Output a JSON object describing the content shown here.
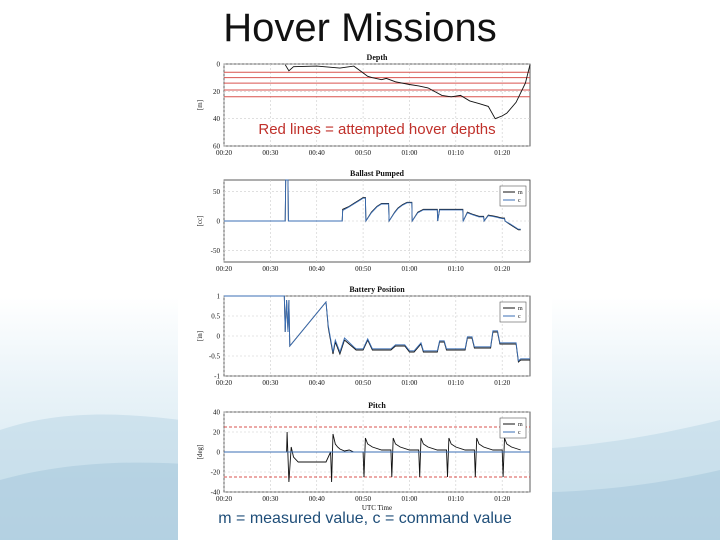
{
  "slide": {
    "title": "Hover Missions",
    "footer_note": "m = measured value, c = command value",
    "colors": {
      "background": "#ffffff",
      "title": "#111111",
      "note": "#1f4e79",
      "hover_lines": "#d9534f",
      "measured": "#111111",
      "command": "#3b6fb6"
    }
  },
  "chart_data": [
    {
      "type": "line",
      "title": "Depth",
      "ylabel": "[m]",
      "xlabel": "",
      "ylim": [
        60,
        0
      ],
      "yticks": [
        0,
        20,
        40,
        60
      ],
      "xticks": [
        "00:20",
        "00:30",
        "00:40",
        "00:50",
        "01:00",
        "01:10",
        "01:20"
      ],
      "xlim_minutes": [
        20,
        86
      ],
      "annotation": "Red lines = attempted hover depths",
      "hover_depths": [
        6,
        10,
        14,
        19,
        24
      ],
      "series": [
        {
          "x": [
            33.2,
            34.0,
            35.0,
            40.0,
            45.0,
            48.0,
            50.0,
            51.0,
            52.0,
            54.0,
            55.0,
            57.0,
            60.0,
            62.0,
            64.0,
            67.0,
            69.0,
            71.0,
            73.0,
            75.0,
            77.0,
            78.5,
            80.0,
            81.0,
            83.0,
            85.0,
            86.0
          ],
          "y": [
            0.5,
            5.0,
            2.0,
            1.5,
            3.0,
            1.5,
            6.5,
            9.0,
            10.0,
            11.5,
            10.5,
            13.0,
            15.0,
            16.0,
            17.5,
            23.0,
            24.0,
            23.0,
            27.0,
            29.0,
            31.0,
            40.0,
            38.0,
            36.0,
            28.0,
            14.0,
            0.5
          ]
        }
      ]
    },
    {
      "type": "line",
      "title": "Ballast Pumped",
      "ylabel": "[cc]",
      "xlabel": "",
      "ylim": [
        -70,
        70
      ],
      "yticks": [
        50,
        0,
        -50
      ],
      "xticks": [
        "00:20",
        "00:30",
        "00:40",
        "00:50",
        "01:00",
        "01:10",
        "01:20"
      ],
      "xlim_minutes": [
        20,
        86
      ],
      "legend": [
        "m",
        "c"
      ],
      "legend_position": "top-right",
      "series": [
        {
          "name": "m",
          "x": [
            20,
            33.2,
            33.3,
            33.8,
            33.9,
            43.0,
            45.5,
            45.6,
            47.0,
            48.0,
            49.0,
            50.0,
            50.5,
            50.6,
            51.8,
            53.0,
            54.0,
            55.5,
            55.6,
            56.8,
            57.5,
            58.5,
            59.5,
            60.5,
            60.6,
            61.8,
            63.0,
            64.5,
            66.0,
            66.1,
            66.5,
            71.5,
            71.6,
            72.5,
            73.5,
            75.0,
            76.0,
            76.1,
            77.0,
            78.5,
            80.0,
            80.5,
            80.6,
            81.5,
            82.5,
            83.5,
            84.0
          ],
          "y": [
            0,
            0,
            70,
            70,
            0,
            0,
            0,
            20,
            25,
            30,
            35,
            40,
            40,
            0,
            15,
            25,
            30,
            30,
            0,
            15,
            22,
            28,
            32,
            32,
            0,
            15,
            20,
            20,
            20,
            0,
            20,
            20,
            0,
            15,
            12,
            8,
            8,
            0,
            10,
            8,
            5,
            5,
            0,
            -5,
            -10,
            -15,
            -15
          ]
        },
        {
          "name": "c",
          "x": [
            20,
            33.2,
            33.3,
            33.8,
            33.9,
            43.0,
            45.5,
            45.6,
            47.0,
            48.0,
            49.0,
            50.0,
            50.5,
            50.6,
            51.8,
            53.0,
            54.0,
            55.5,
            55.6,
            56.8,
            57.5,
            58.5,
            59.5,
            60.5,
            60.6,
            61.8,
            63.0,
            64.5,
            66.0,
            66.1,
            66.5,
            71.5,
            71.6,
            72.5,
            73.5,
            75.0,
            76.0,
            76.1,
            77.0,
            78.5,
            80.0,
            80.5,
            80.6,
            81.5,
            82.5,
            83.5,
            84.0
          ],
          "y": [
            0,
            0,
            70,
            70,
            0,
            0,
            0,
            18,
            24,
            29,
            34,
            39,
            39,
            0,
            14,
            24,
            29,
            29,
            0,
            14,
            21,
            27,
            31,
            31,
            0,
            14,
            19,
            19,
            19,
            0,
            19,
            19,
            0,
            14,
            11,
            7,
            7,
            0,
            9,
            7,
            4,
            4,
            0,
            -4,
            -9,
            -14,
            -14
          ]
        }
      ]
    },
    {
      "type": "line",
      "title": "Battery Position",
      "ylabel": "[in]",
      "xlabel": "",
      "ylim": [
        -1,
        1
      ],
      "yticks": [
        1,
        0.5,
        0,
        -0.5,
        -1
      ],
      "xticks": [
        "00:20",
        "00:30",
        "00:40",
        "00:50",
        "01:00",
        "01:10",
        "01:20"
      ],
      "xlim_minutes": [
        20,
        86
      ],
      "legend": [
        "m",
        "c"
      ],
      "legend_position": "top-right",
      "series": [
        {
          "name": "m",
          "x": [
            20,
            33.0,
            33.2,
            33.5,
            33.8,
            34.0,
            34.2,
            42.0,
            42.5,
            43.5,
            44.0,
            45.0,
            46.0,
            48.0,
            48.5,
            50.0,
            51.0,
            52.0,
            52.5,
            56.0,
            57.0,
            59.0,
            60.0,
            61.0,
            62.5,
            63.0,
            66.0,
            66.5,
            67.5,
            68.0,
            72.0,
            72.5,
            73.5,
            74.0,
            77.5,
            78.0,
            79.0,
            79.5,
            83.0,
            83.5,
            84.0,
            86.0
          ],
          "y": [
            1.0,
            1.0,
            0.1,
            0.9,
            0.1,
            0.9,
            -0.25,
            0.85,
            0.2,
            -0.45,
            -0.15,
            -0.45,
            -0.1,
            -0.3,
            -0.35,
            -0.35,
            -0.1,
            -0.35,
            -0.35,
            -0.35,
            -0.25,
            -0.25,
            -0.4,
            -0.4,
            -0.2,
            -0.4,
            -0.4,
            -0.15,
            -0.15,
            -0.35,
            -0.35,
            -0.05,
            -0.05,
            -0.3,
            -0.3,
            0.1,
            0.1,
            -0.2,
            -0.2,
            -0.65,
            -0.6,
            -0.6
          ]
        },
        {
          "name": "c",
          "x": [
            20,
            33.0,
            33.2,
            33.5,
            33.8,
            34.0,
            34.2,
            42.0,
            42.5,
            43.5,
            44.0,
            45.0,
            46.0,
            48.0,
            48.5,
            50.0,
            51.0,
            52.0,
            52.5,
            56.0,
            57.0,
            59.0,
            60.0,
            61.0,
            62.5,
            63.0,
            66.0,
            66.5,
            67.5,
            68.0,
            72.0,
            72.5,
            73.5,
            74.0,
            77.5,
            78.0,
            79.0,
            79.5,
            83.0,
            83.5,
            84.0,
            86.0
          ],
          "y": [
            1.0,
            1.0,
            0.1,
            0.9,
            0.1,
            0.9,
            -0.25,
            0.85,
            0.25,
            -0.4,
            -0.1,
            -0.4,
            -0.05,
            -0.27,
            -0.32,
            -0.32,
            -0.07,
            -0.32,
            -0.32,
            -0.32,
            -0.22,
            -0.22,
            -0.37,
            -0.37,
            -0.17,
            -0.37,
            -0.37,
            -0.12,
            -0.12,
            -0.32,
            -0.32,
            -0.02,
            -0.02,
            -0.27,
            -0.27,
            0.13,
            0.13,
            -0.17,
            -0.17,
            -0.62,
            -0.57,
            -0.57
          ]
        }
      ]
    },
    {
      "type": "line",
      "title": "Pitch",
      "ylabel": "[deg]",
      "xlabel": "UTC Time",
      "ylim": [
        -40,
        40
      ],
      "yticks": [
        40,
        20,
        0,
        -20,
        -40
      ],
      "xticks": [
        "00:20",
        "00:30",
        "00:40",
        "00:50",
        "01:00",
        "01:10",
        "01:20"
      ],
      "xlim_minutes": [
        20,
        86
      ],
      "legend": [
        "m",
        "c"
      ],
      "legend_position": "top-right",
      "reference_lines": [
        25,
        -25
      ],
      "series": [
        {
          "name": "m",
          "x": [
            20,
            33.5,
            33.6,
            34.0,
            34.5,
            35.0,
            36.0,
            38.0,
            42.0,
            43.0,
            43.2,
            43.5,
            44.0,
            44.5,
            45.0,
            46.0,
            47.0,
            48.0,
            50.0,
            50.2,
            50.5,
            51.0,
            52.0,
            54.0,
            56.0,
            56.2,
            56.5,
            57.0,
            58.0,
            60.0,
            62.0,
            62.2,
            62.5,
            63.0,
            64.0,
            66.0,
            68.0,
            68.2,
            68.5,
            69.0,
            70.0,
            72.0,
            74.0,
            74.2,
            74.5,
            75.0,
            76.0,
            78.0,
            80.0,
            80.2,
            80.5,
            81.0,
            82.0,
            84.0
          ],
          "y": [
            0,
            0,
            20,
            -30,
            5,
            -5,
            -10,
            -10,
            -10,
            0,
            -30,
            18,
            8,
            5,
            3,
            1,
            2,
            0,
            0,
            -25,
            14,
            8,
            5,
            2,
            2,
            -25,
            14,
            8,
            5,
            2,
            2,
            -25,
            14,
            8,
            5,
            2,
            2,
            -25,
            14,
            8,
            5,
            2,
            2,
            -25,
            14,
            8,
            5,
            2,
            2,
            -25,
            14,
            8,
            5,
            2
          ]
        },
        {
          "name": "c",
          "x": [
            20,
            86
          ],
          "y": [
            0,
            0
          ]
        }
      ]
    }
  ]
}
